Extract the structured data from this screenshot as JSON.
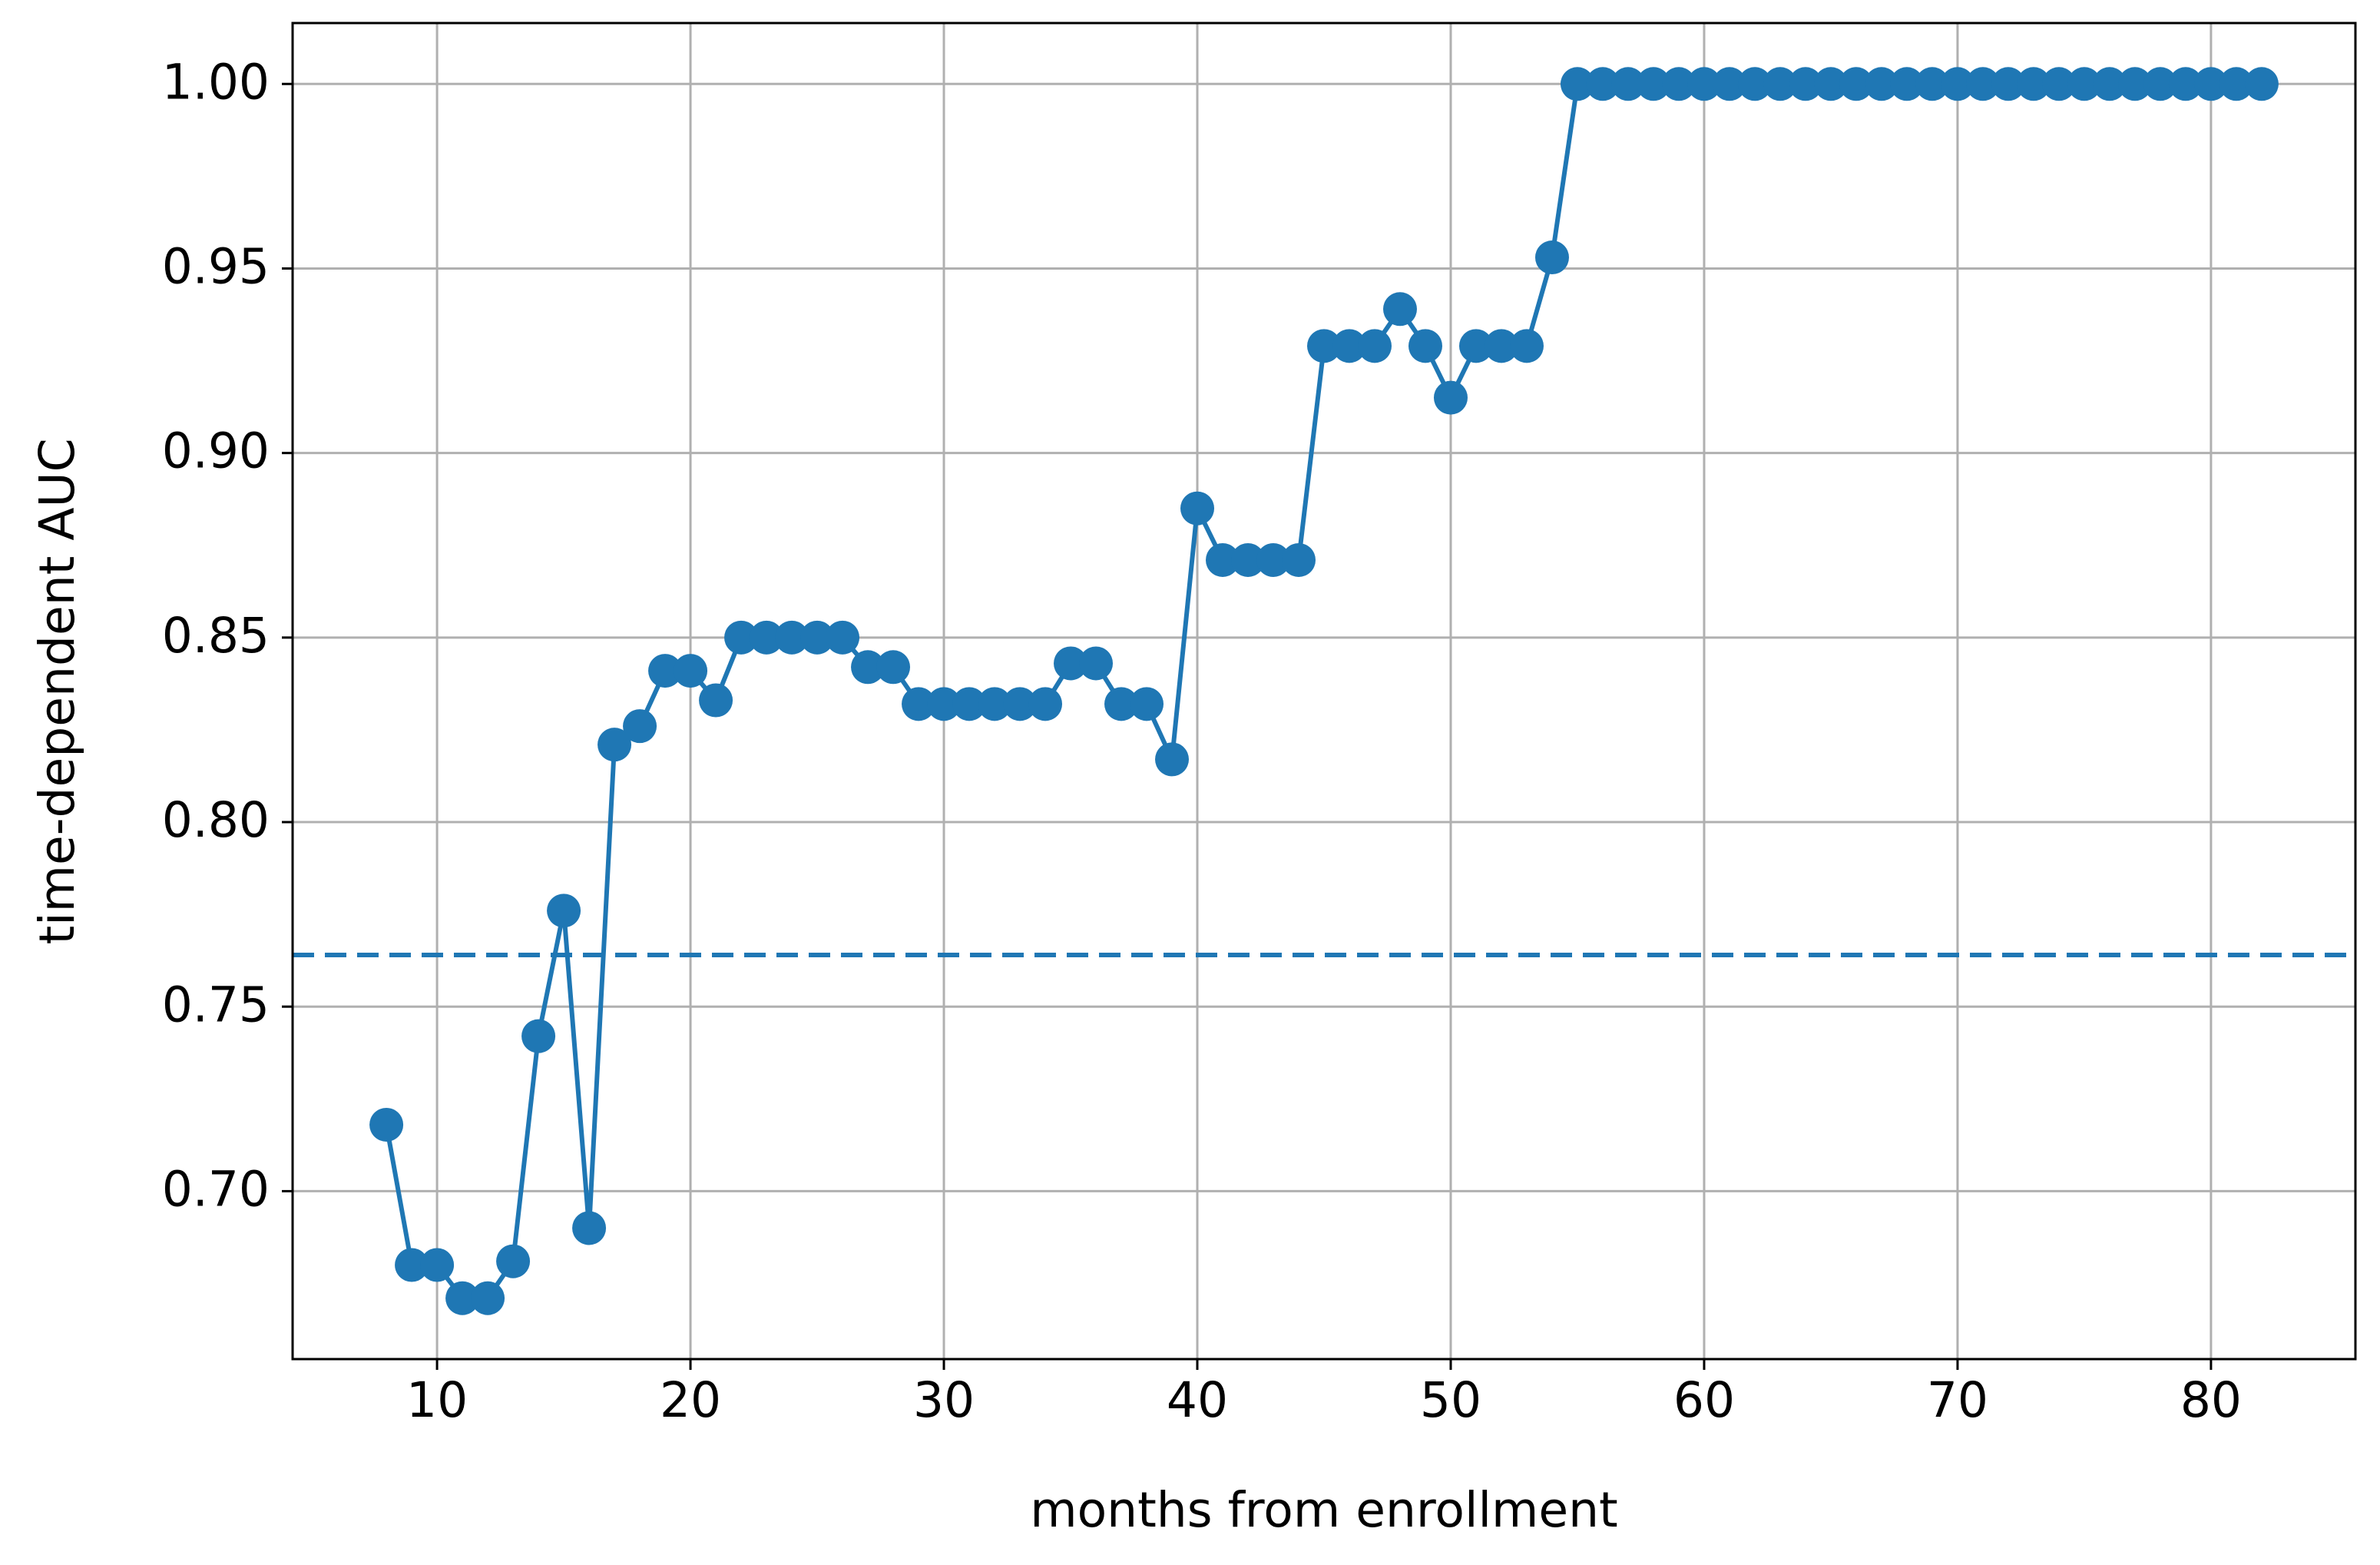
{
  "chart_data": {
    "type": "line",
    "x_label": "months from enrollment",
    "y_label": "time-dependent AUC",
    "x": [
      8,
      9,
      10,
      11,
      12,
      13,
      14,
      15,
      16,
      17,
      18,
      19,
      20,
      21,
      22,
      23,
      24,
      25,
      26,
      27,
      28,
      29,
      30,
      31,
      32,
      33,
      34,
      35,
      36,
      37,
      38,
      39,
      40,
      41,
      42,
      43,
      44,
      45,
      46,
      47,
      48,
      49,
      50,
      51,
      52,
      53,
      54,
      55,
      56,
      57,
      58,
      59,
      60,
      61,
      62,
      63,
      64,
      65,
      66,
      67,
      68,
      69,
      70,
      71,
      72,
      73,
      74,
      75,
      76,
      77,
      78,
      79,
      80,
      81,
      82
    ],
    "series": [
      {
        "color": "#1f77b4",
        "values": [
          0.718,
          0.68,
          0.68,
          0.671,
          0.671,
          0.681,
          0.742,
          0.776,
          0.69,
          0.821,
          0.826,
          0.841,
          0.841,
          0.833,
          0.85,
          0.85,
          0.85,
          0.85,
          0.85,
          0.842,
          0.842,
          0.832,
          0.832,
          0.832,
          0.832,
          0.832,
          0.832,
          0.843,
          0.843,
          0.832,
          0.832,
          0.817,
          0.885,
          0.871,
          0.871,
          0.871,
          0.871,
          0.929,
          0.929,
          0.929,
          0.939,
          0.929,
          0.915,
          0.929,
          0.929,
          0.929,
          0.953,
          1.0,
          1.0,
          1.0,
          1.0,
          1.0,
          1.0,
          1.0,
          1.0,
          1.0,
          1.0,
          1.0,
          1.0,
          1.0,
          1.0,
          1.0,
          1.0,
          1.0,
          1.0,
          1.0,
          1.0,
          1.0,
          1.0,
          1.0,
          1.0,
          1.0,
          1.0,
          1.0,
          1.0
        ]
      }
    ],
    "hline": {
      "value": 0.764,
      "color": "#1f77b4",
      "style": "dashed"
    },
    "xlim": [
      4.3,
      85.7
    ],
    "xticks": [
      10,
      20,
      30,
      40,
      50,
      60,
      70,
      80
    ],
    "ylim": [
      0.6545,
      1.0165
    ],
    "yticks": [
      {
        "value": 0.7,
        "label": "0.70"
      },
      {
        "value": 0.75,
        "label": "0.75"
      },
      {
        "value": 0.8,
        "label": "0.80"
      },
      {
        "value": 0.85,
        "label": "0.85"
      },
      {
        "value": 0.9,
        "label": "0.90"
      },
      {
        "value": 0.95,
        "label": "0.95"
      },
      {
        "value": 1.0,
        "label": "1.00"
      }
    ],
    "grid": true
  }
}
